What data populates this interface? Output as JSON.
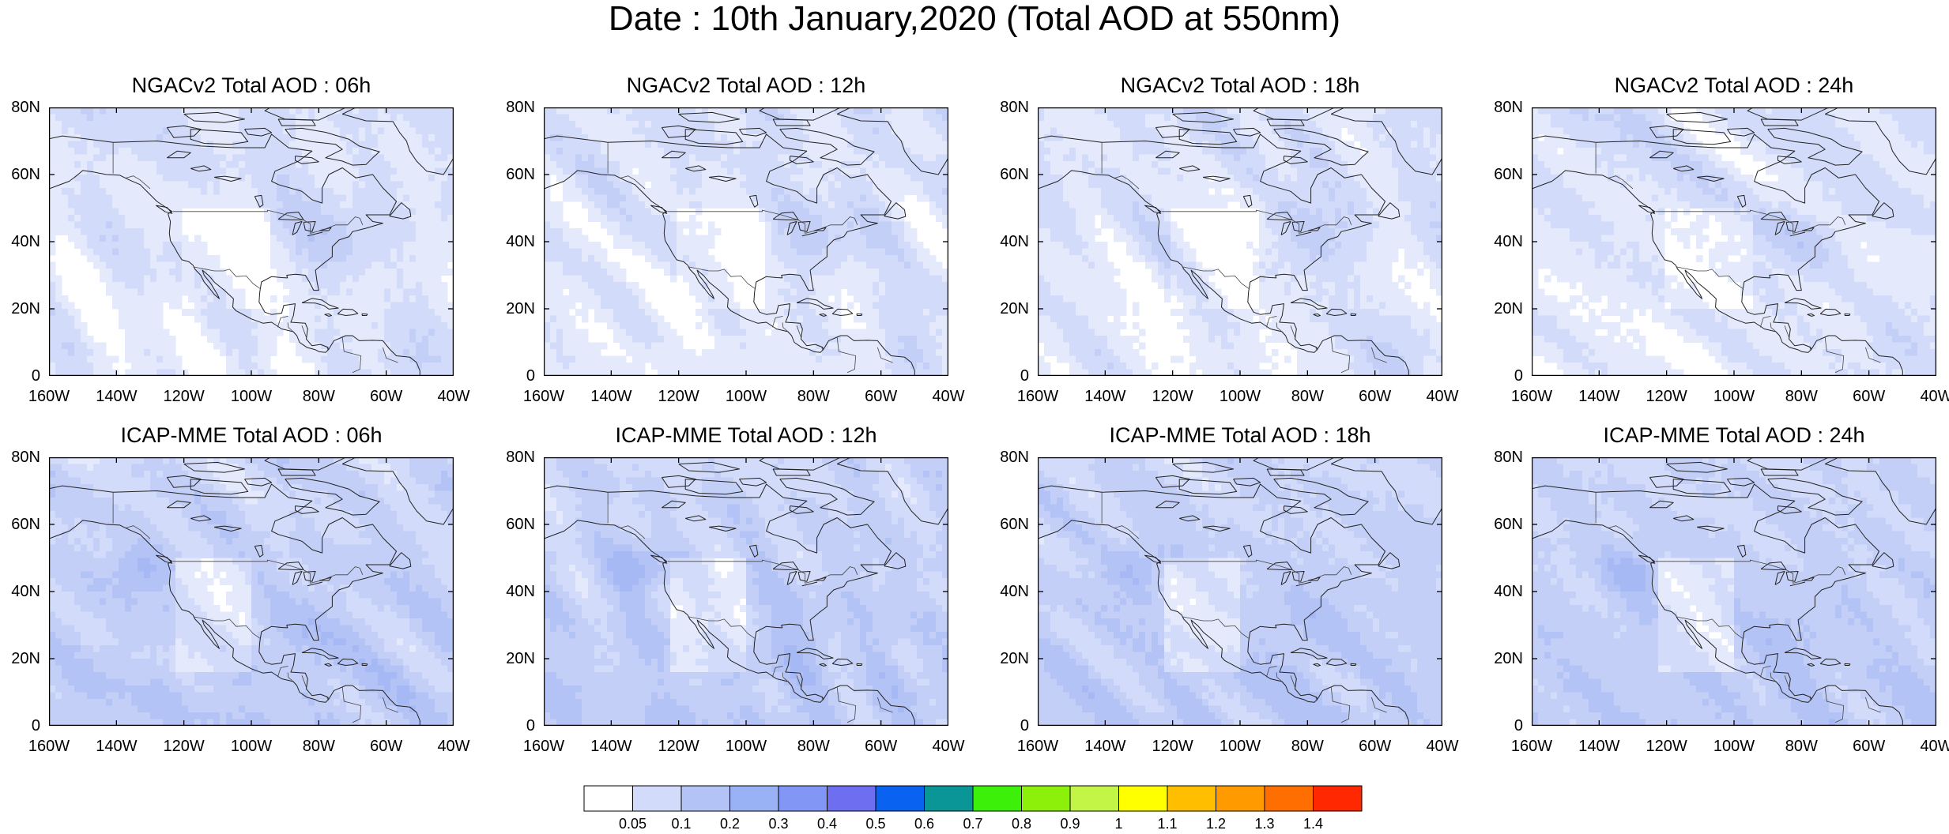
{
  "title": "Date : 10th January,2020 (Total AOD at 550nm)",
  "panels": [
    {
      "title": "NGACv2 Total AOD : 06h",
      "model": "NGACv2",
      "hour": "06h"
    },
    {
      "title": "NGACv2 Total AOD : 12h",
      "model": "NGACv2",
      "hour": "12h"
    },
    {
      "title": "NGACv2 Total AOD : 18h",
      "model": "NGACv2",
      "hour": "18h"
    },
    {
      "title": "NGACv2 Total AOD : 24h",
      "model": "NGACv2",
      "hour": "24h"
    },
    {
      "title": "ICAP-MME Total AOD : 06h",
      "model": "ICAP-MME",
      "hour": "06h"
    },
    {
      "title": "ICAP-MME Total AOD : 12h",
      "model": "ICAP-MME",
      "hour": "12h"
    },
    {
      "title": "ICAP-MME Total AOD : 18h",
      "model": "ICAP-MME",
      "hour": "18h"
    },
    {
      "title": "ICAP-MME Total AOD : 24h",
      "model": "ICAP-MME",
      "hour": "24h"
    }
  ],
  "axes": {
    "lat_labels": [
      "80N",
      "60N",
      "40N",
      "20N",
      "0"
    ],
    "lat_values": [
      80,
      60,
      40,
      20,
      0
    ],
    "lon_labels": [
      "160W",
      "140W",
      "120W",
      "100W",
      "80W",
      "60W",
      "40W"
    ],
    "lon_values": [
      -160,
      -140,
      -120,
      -100,
      -80,
      -60,
      -40
    ],
    "lat_range": [
      0,
      80
    ],
    "lon_range": [
      -160,
      -40
    ]
  },
  "colorbar": {
    "labels": [
      "0.05",
      "0.1",
      "0.2",
      "0.3",
      "0.4",
      "0.5",
      "0.6",
      "0.7",
      "0.8",
      "0.9",
      "1",
      "1.1",
      "1.2",
      "1.3",
      "1.4"
    ],
    "colors": [
      "#ffffff",
      "#d2dcfa",
      "#b4c3f5",
      "#99b1f5",
      "#8296f5",
      "#6d6ef0",
      "#0a62f0",
      "#0a9696",
      "#3cf00a",
      "#8cf00a",
      "#c3f546",
      "#ffff00",
      "#ffbe00",
      "#ff9b00",
      "#ff6e00",
      "#ff2800"
    ]
  }
}
